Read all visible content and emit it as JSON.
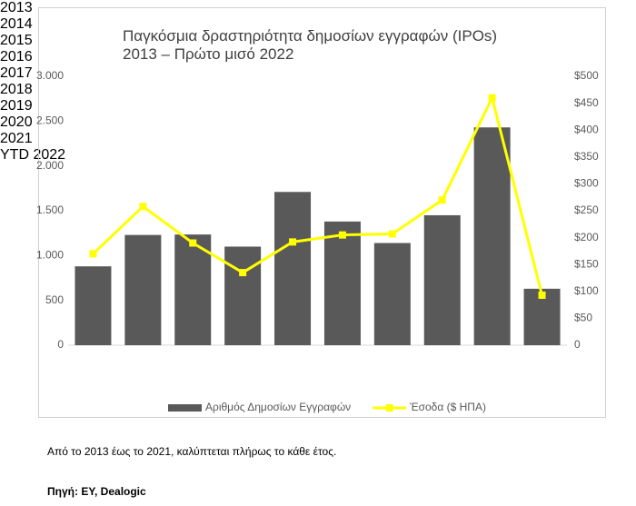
{
  "chart_data": {
    "type": "bar-line",
    "title": "Παγκόσμια δραστηριότητα δημοσίων εγγραφών (IPOs)",
    "subtitle": "2013 – Πρώτο μισό 2022",
    "categories": [
      "2013",
      "2014",
      "2015",
      "2016",
      "2017",
      "2018",
      "2019",
      "2020",
      "2021",
      "YTD 2022"
    ],
    "series": [
      {
        "name": "Αριθμός Δημοσίων Εγγραφών",
        "type": "bar",
        "color": "#595959",
        "values": [
          880,
          1230,
          1235,
          1100,
          1710,
          1380,
          1140,
          1450,
          2430,
          630
        ]
      },
      {
        "name": "Έσοδα ($ ΗΠΑ)",
        "type": "line",
        "axis": "y2",
        "color": "#ffff00",
        "values": [
          170,
          258,
          190,
          135,
          192,
          205,
          207,
          270,
          460,
          93
        ]
      }
    ],
    "ylim": [
      0,
      3000
    ],
    "yticks": [
      0,
      500,
      {
        "value": 1000,
        "label": "1.000"
      },
      {
        "value": 1500,
        "label": "1.500"
      },
      {
        "value": 2000,
        "label": "2.000"
      },
      {
        "value": 2500,
        "label": "2.500"
      },
      {
        "value": 3000,
        "label": "3.000"
      }
    ],
    "y2lim": [
      0,
      500
    ],
    "y2ticks": [
      0,
      {
        "value": 50,
        "label": "$50"
      },
      {
        "value": 100,
        "label": "$100"
      },
      {
        "value": 150,
        "label": "$150"
      },
      {
        "value": 200,
        "label": "$200"
      },
      {
        "value": 250,
        "label": "$250"
      },
      {
        "value": 300,
        "label": "$300"
      },
      {
        "value": 350,
        "label": "$350"
      },
      {
        "value": 400,
        "label": "$400"
      },
      {
        "value": 450,
        "label": "$450"
      },
      {
        "value": 500,
        "label": "$500"
      }
    ],
    "grid": false,
    "legend": "bottom"
  },
  "footnote": "Από το 2013 έως το 2021, καλύπτεται πλήρως το κάθε έτος.",
  "source": "Πηγή: EY, Dealogic"
}
